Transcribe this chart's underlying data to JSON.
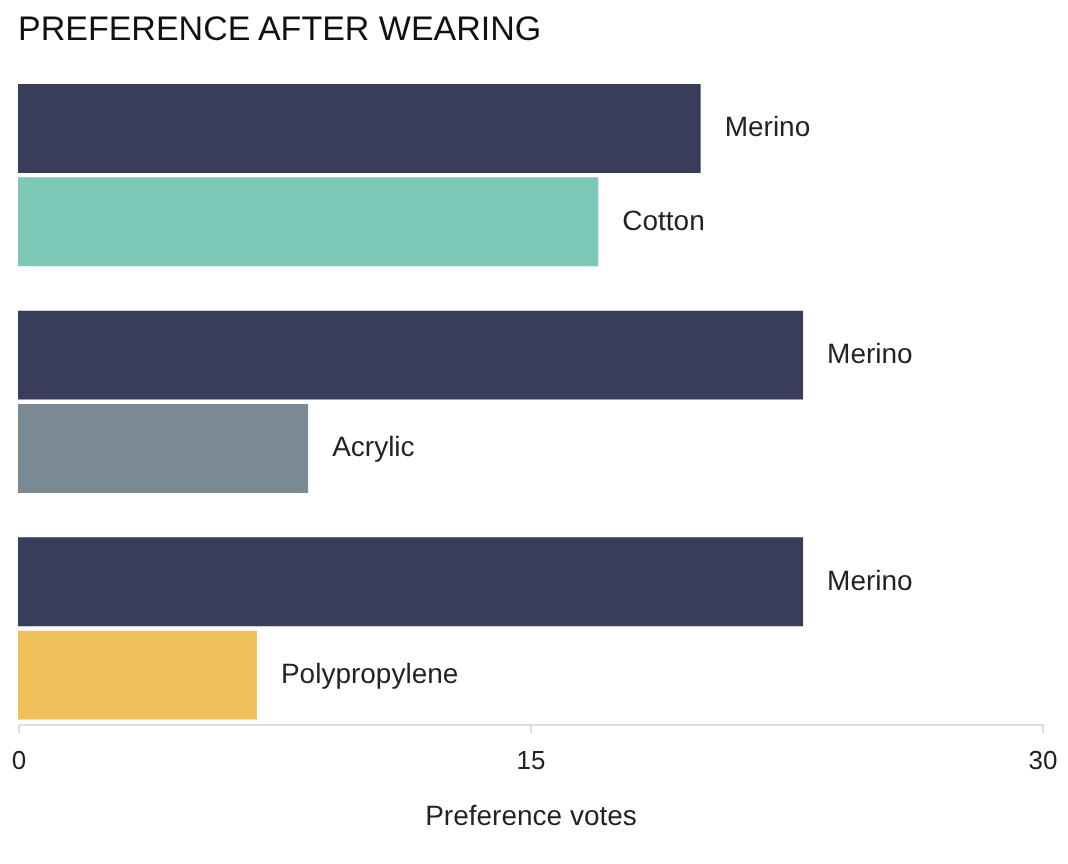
{
  "chart_data": {
    "type": "bar",
    "orientation": "horizontal",
    "title": "PREFERENCE AFTER WEARING",
    "xlabel": "Preference votes",
    "categories": [
      "Merino",
      "Cotton",
      "Merino",
      "Acrylic",
      "Merino",
      "Polypropylene"
    ],
    "values": [
      20,
      17,
      23,
      8.5,
      23,
      7
    ],
    "colors": [
      "#3a3d5a",
      "#7ec8b7",
      "#3a3d5a",
      "#7a8a94",
      "#3a3d5a",
      "#f0c05a"
    ],
    "xlim": [
      0,
      30
    ],
    "xticks": [
      0,
      15,
      30
    ],
    "grid": false
  }
}
